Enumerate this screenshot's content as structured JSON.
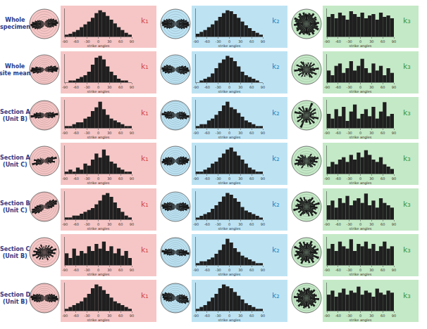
{
  "chart_data": {
    "type": "histogram",
    "x_label": "strike angles",
    "bins": [
      -90,
      -80,
      -70,
      -60,
      -50,
      -40,
      -30,
      -20,
      -10,
      0,
      10,
      20,
      30,
      40,
      50,
      60,
      70,
      80,
      90
    ],
    "xlim": [
      -90,
      90
    ],
    "xticks": [
      -90,
      -60,
      -30,
      0,
      30,
      60,
      90
    ],
    "tick_labels": "x",
    "grid": true,
    "columns": [
      {
        "label": "k₁",
        "color": "#d24b4b",
        "background": "#f6c6c6"
      },
      {
        "label": "k₂",
        "color": "#2f8ac4",
        "background": "#bde3f3"
      },
      {
        "label": "k₃",
        "color": "#3a9a4a",
        "background": "#c4e9c6"
      }
    ],
    "rows": [
      {
        "label": [
          "Whole",
          "specimen"
        ],
        "panels": [
          {
            "counts": [
              2,
              3,
              5,
              7,
              10,
              13,
              16,
              20,
              25,
              28,
              26,
              22,
              18,
              14,
              10,
              7,
              4,
              2
            ],
            "ylim": [
              0,
              30
            ]
          },
          {
            "counts": [
              3,
              5,
              7,
              10,
              13,
              17,
              21,
              25,
              28,
              27,
              24,
              20,
              16,
              12,
              9,
              6,
              4,
              2
            ],
            "ylim": [
              0,
              30
            ]
          },
          {
            "counts": [
              14,
              16,
              13,
              17,
              15,
              12,
              18,
              16,
              14,
              17,
              13,
              15,
              16,
              12,
              17,
              14,
              15,
              13
            ],
            "ylim": [
              0,
              20
            ]
          }
        ]
      },
      {
        "label": [
          "Whole",
          "site mean"
        ],
        "panels": [
          {
            "counts": [
              0,
              1,
              1,
              2,
              3,
              4,
              6,
              10,
              14,
              15,
              13,
              9,
              6,
              4,
              2,
              1,
              1,
              0
            ],
            "ylim": [
              0,
              16
            ]
          },
          {
            "counts": [
              0,
              1,
              2,
              3,
              5,
              8,
              11,
              13,
              15,
              14,
              12,
              9,
              6,
              4,
              3,
              2,
              1,
              0
            ],
            "ylim": [
              0,
              16
            ]
          },
          {
            "counts": [
              5,
              3,
              7,
              8,
              4,
              6,
              9,
              5,
              7,
              10,
              6,
              4,
              8,
              5,
              7,
              3,
              6,
              4
            ],
            "ylim": [
              0,
              12
            ]
          }
        ]
      },
      {
        "label": [
          "Section A",
          "(Unit B)"
        ],
        "panels": [
          {
            "counts": [
              1,
              1,
              2,
              3,
              3,
              5,
              6,
              9,
              11,
              14,
              10,
              7,
              5,
              4,
              3,
              2,
              1,
              1
            ],
            "ylim": [
              0,
              15
            ]
          },
          {
            "counts": [
              1,
              2,
              2,
              4,
              5,
              7,
              9,
              12,
              14,
              11,
              10,
              8,
              6,
              4,
              3,
              2,
              1,
              1
            ],
            "ylim": [
              0,
              15
            ]
          },
          {
            "counts": [
              6,
              4,
              8,
              5,
              9,
              3,
              7,
              10,
              4,
              6,
              8,
              5,
              9,
              4,
              7,
              11,
              5,
              6
            ],
            "ylim": [
              0,
              12
            ]
          }
        ]
      },
      {
        "label": [
          "Section A",
          "(Unit C)"
        ],
        "panels": [
          {
            "counts": [
              1,
              2,
              1,
              3,
              2,
              5,
              4,
              7,
              10,
              8,
              12,
              9,
              6,
              5,
              3,
              2,
              1,
              1
            ],
            "ylim": [
              0,
              14
            ]
          },
          {
            "counts": [
              1,
              1,
              2,
              3,
              5,
              6,
              8,
              10,
              12,
              13,
              11,
              9,
              7,
              5,
              3,
              2,
              1,
              1
            ],
            "ylim": [
              0,
              14
            ]
          },
          {
            "counts": [
              3,
              5,
              4,
              6,
              7,
              5,
              8,
              6,
              9,
              7,
              10,
              8,
              6,
              5,
              7,
              4,
              3,
              2
            ],
            "ylim": [
              0,
              12
            ]
          }
        ]
      },
      {
        "label": [
          "Section B",
          "(Unit C)"
        ],
        "panels": [
          {
            "counts": [
              1,
              1,
              2,
              2,
              3,
              4,
              5,
              6,
              8,
              10,
              13,
              14,
              12,
              9,
              6,
              4,
              2,
              1
            ],
            "ylim": [
              0,
              15
            ]
          },
          {
            "counts": [
              1,
              2,
              3,
              4,
              6,
              8,
              10,
              13,
              15,
              14,
              12,
              10,
              7,
              5,
              4,
              3,
              2,
              1
            ],
            "ylim": [
              0,
              16
            ]
          },
          {
            "counts": [
              6,
              8,
              5,
              9,
              7,
              10,
              6,
              8,
              9,
              7,
              11,
              6,
              8,
              5,
              9,
              7,
              6,
              5
            ],
            "ylim": [
              0,
              12
            ]
          }
        ]
      },
      {
        "label": [
          "Section C",
          "(Unit B)"
        ],
        "panels": [
          {
            "counts": [
              5,
              3,
              7,
              4,
              6,
              5,
              8,
              6,
              9,
              7,
              10,
              6,
              8,
              5,
              7,
              4,
              6,
              3
            ],
            "ylim": [
              0,
              12
            ]
          },
          {
            "counts": [
              1,
              2,
              2,
              3,
              4,
              6,
              8,
              11,
              14,
              12,
              9,
              7,
              5,
              4,
              3,
              2,
              1,
              1
            ],
            "ylim": [
              0,
              15
            ]
          },
          {
            "counts": [
              7,
              9,
              6,
              10,
              8,
              7,
              11,
              6,
              9,
              8,
              10,
              7,
              9,
              6,
              8,
              10,
              7,
              8
            ],
            "ylim": [
              0,
              12
            ]
          }
        ]
      },
      {
        "label": [
          "Section D",
          "(Unit B)"
        ],
        "panels": [
          {
            "counts": [
              1,
              2,
              3,
              4,
              5,
              7,
              9,
              12,
              14,
              13,
              11,
              9,
              7,
              5,
              4,
              3,
              2,
              1
            ],
            "ylim": [
              0,
              15
            ]
          },
          {
            "counts": [
              1,
              2,
              3,
              5,
              7,
              9,
              12,
              14,
              13,
              12,
              10,
              8,
              6,
              4,
              3,
              2,
              1,
              1
            ],
            "ylim": [
              0,
              15
            ]
          },
          {
            "counts": [
              8,
              10,
              7,
              9,
              11,
              8,
              10,
              9,
              12,
              8,
              10,
              9,
              7,
              11,
              9,
              8,
              10,
              9
            ],
            "ylim": [
              0,
              14
            ]
          }
        ]
      }
    ]
  }
}
